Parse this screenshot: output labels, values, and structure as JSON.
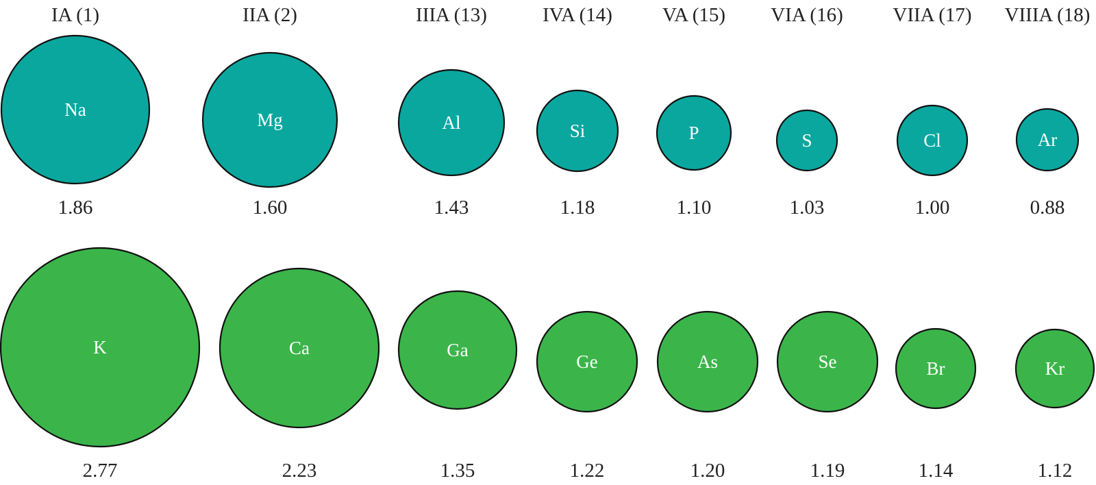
{
  "colors": {
    "period3": "#0aa79f",
    "period4": "#3bb54a",
    "outline": "#111111",
    "symbol_text": "#ffffff"
  },
  "groups": [
    "IA (1)",
    "IIA (2)",
    "IIIA (13)",
    "IVA (14)",
    "VA (15)",
    "VIA (16)",
    "VIIA (17)",
    "VIIIA (18)"
  ],
  "rows": [
    {
      "elements": [
        {
          "symbol": "Na",
          "value": "1.86"
        },
        {
          "symbol": "Mg",
          "value": "1.60"
        },
        {
          "symbol": "Al",
          "value": "1.43"
        },
        {
          "symbol": "Si",
          "value": "1.18"
        },
        {
          "symbol": "P",
          "value": "1.10"
        },
        {
          "symbol": "S",
          "value": "1.03"
        },
        {
          "symbol": "Cl",
          "value": "1.00"
        },
        {
          "symbol": "Ar",
          "value": "0.88"
        }
      ]
    },
    {
      "elements": [
        {
          "symbol": "K",
          "value": "2.77"
        },
        {
          "symbol": "Ca",
          "value": "2.23"
        },
        {
          "symbol": "Ga",
          "value": "1.35"
        },
        {
          "symbol": "Ge",
          "value": "1.22"
        },
        {
          "symbol": "As",
          "value": "1.20"
        },
        {
          "symbol": "Se",
          "value": "1.19"
        },
        {
          "symbol": "Br",
          "value": "1.14"
        },
        {
          "symbol": "Kr",
          "value": "1.12"
        }
      ]
    }
  ]
}
